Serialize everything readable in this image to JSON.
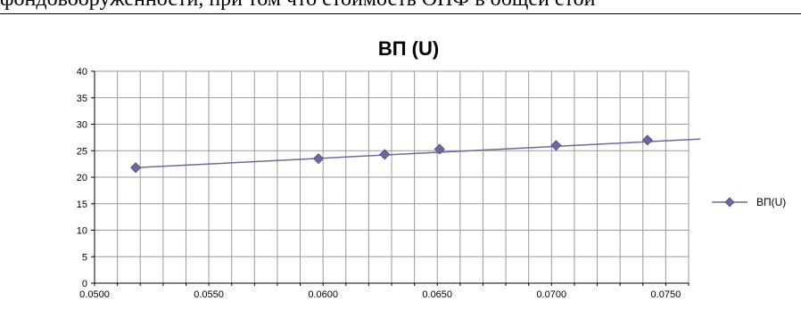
{
  "document": {
    "clipped_text": "фондовооруженности, при том что стоимость ОПФ в общей стои"
  },
  "chart_data": {
    "type": "line",
    "title": "ВП (U)",
    "xlabel": "",
    "ylabel": "",
    "xlim": [
      0.05,
      0.076
    ],
    "ylim": [
      0,
      40
    ],
    "x_ticks": [
      "0.0500",
      "0.0550",
      "0.0600",
      "0.0650",
      "0.0700",
      "0.0750"
    ],
    "y_ticks": [
      "0",
      "5",
      "10",
      "15",
      "20",
      "25",
      "30",
      "35",
      "40"
    ],
    "grid": true,
    "legend_position": "right",
    "series": [
      {
        "name": "ВП(U)",
        "color": "#6a6a9c",
        "marker": "diamond",
        "x": [
          0.0518,
          0.0598,
          0.0627,
          0.0651,
          0.0702,
          0.0742
        ],
        "y": [
          21.8,
          23.5,
          24.3,
          25.3,
          26.0,
          27.0
        ]
      }
    ],
    "trendline": {
      "color": "#6a6a9c",
      "x": [
        0.0518,
        0.0762
      ],
      "y": [
        21.8,
        27.2
      ]
    }
  }
}
